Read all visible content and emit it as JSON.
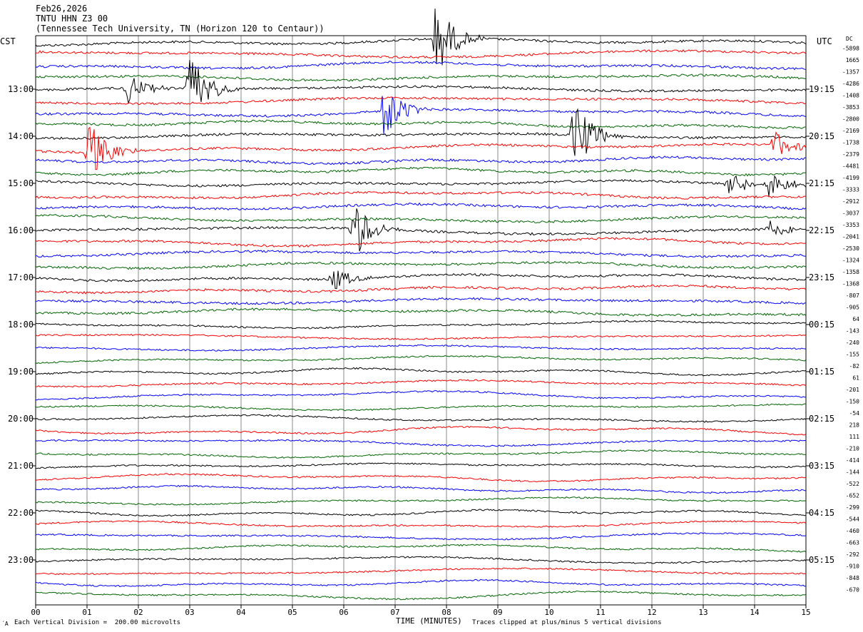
{
  "header": {
    "date": "Feb26,2026",
    "station": "TNTU HHN Z3 00",
    "site": "(Tennessee Tech University, TN (Horizon 120 to Centaur))"
  },
  "left_timezone": "CST",
  "right_timezone": "UTC",
  "dc_label": "DC",
  "footer": {
    "scale_note": "Each Vertical Division =  200.00 microvolts",
    "xlabel": "TIME (MINUTES)",
    "clip_note": "Traces clipped at plus/minus 5 vertical divisions",
    "corner": "´A"
  },
  "colors": {
    "black": "#000000",
    "red": "#ff0000",
    "blue": "#0000ff",
    "green": "#006600",
    "grid": "#888888"
  },
  "chart_data": {
    "type": "line",
    "title": "TNTU HHN Z3 00",
    "xlabel": "TIME (MINUTES)",
    "xlim": [
      0,
      15
    ],
    "x_ticks": [
      "00",
      "01",
      "02",
      "03",
      "04",
      "05",
      "06",
      "07",
      "08",
      "09",
      "10",
      "11",
      "12",
      "13",
      "14",
      "15"
    ],
    "trace_color_cycle": [
      "black",
      "red",
      "blue",
      "green"
    ],
    "num_traces": 48,
    "left_hour_labels": [
      "13:00",
      "14:00",
      "15:00",
      "16:00",
      "17:00",
      "18:00",
      "19:00",
      "20:00",
      "21:00",
      "22:00",
      "23:00"
    ],
    "right_hour_labels": [
      "19:15",
      "20:15",
      "21:15",
      "22:15",
      "23:15",
      "00:15",
      "01:15",
      "02:15",
      "03:15",
      "04:15",
      "05:15"
    ],
    "dc_offsets": [
      "-5898",
      "1665",
      "-1357",
      "-4286",
      "-1408",
      "-3853",
      "-2800",
      "-2169",
      "-1738",
      "-2379",
      "-4481",
      "-4199",
      "-3333",
      "-2912",
      "-3037",
      "-3353",
      "-2041",
      "-2530",
      "-1324",
      "-1358",
      "-1368",
      "-807",
      "-905",
      "64",
      "-143",
      "-240",
      "-155",
      "-82",
      "61",
      "-201",
      "-150",
      "-54",
      "218",
      "111",
      "-210",
      "-414",
      "-144",
      "-522",
      "-652",
      "-299",
      "-544",
      "-460",
      "-663",
      "-292",
      "-910",
      "-848",
      "-670"
    ],
    "events": [
      {
        "trace": 0,
        "minute": 7.8,
        "amplitude": 5
      },
      {
        "trace": 4,
        "minute": 3.0,
        "amplitude": 5
      },
      {
        "trace": 4,
        "minute": 1.8,
        "amplitude": 2
      },
      {
        "trace": 6,
        "minute": 6.8,
        "amplitude": 4
      },
      {
        "trace": 8,
        "minute": 10.5,
        "amplitude": 5
      },
      {
        "trace": 9,
        "minute": 1.05,
        "amplitude": 4
      },
      {
        "trace": 9,
        "minute": 14.4,
        "amplitude": 2
      },
      {
        "trace": 12,
        "minute": 13.5,
        "amplitude": 2
      },
      {
        "trace": 12,
        "minute": 14.3,
        "amplitude": 2
      },
      {
        "trace": 16,
        "minute": 6.2,
        "amplitude": 4
      },
      {
        "trace": 16,
        "minute": 14.3,
        "amplitude": 1.5
      },
      {
        "trace": 20,
        "minute": 5.8,
        "amplitude": 1.5
      }
    ]
  }
}
